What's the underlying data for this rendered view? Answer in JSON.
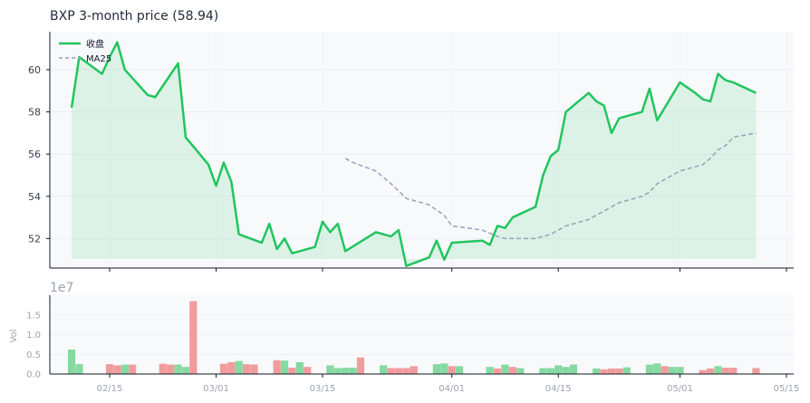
{
  "chart_data": [
    {
      "type": "line",
      "title": "BXP  3-month price (58.94)",
      "ylim": [
        50.6,
        61.8
      ],
      "yticks": [
        "52",
        "54",
        "56",
        "58",
        "60"
      ],
      "grid": true,
      "legend_placement": "top-left",
      "legend": [
        "收盘",
        "MA25"
      ],
      "series": [
        {
          "name": "收盘",
          "color": "#22c55e",
          "fill": true,
          "values": [
            [
              "2025-02-10",
              58.2
            ],
            [
              "2025-02-11",
              60.6
            ],
            [
              "2025-02-14",
              59.8
            ],
            [
              "2025-02-15",
              60.6
            ],
            [
              "2025-02-16",
              61.3
            ],
            [
              "2025-02-17",
              60.0
            ],
            [
              "2025-02-20",
              58.8
            ],
            [
              "2025-02-21",
              58.7
            ],
            [
              "2025-02-24",
              60.3
            ],
            [
              "2025-02-25",
              56.8
            ],
            [
              "2025-02-28",
              55.5
            ],
            [
              "2025-03-01",
              54.5
            ],
            [
              "2025-03-02",
              55.6
            ],
            [
              "2025-03-03",
              54.7
            ],
            [
              "2025-03-04",
              52.2
            ],
            [
              "2025-03-07",
              51.8
            ],
            [
              "2025-03-08",
              52.7
            ],
            [
              "2025-03-09",
              51.5
            ],
            [
              "2025-03-10",
              52.0
            ],
            [
              "2025-03-11",
              51.3
            ],
            [
              "2025-03-14",
              51.6
            ],
            [
              "2025-03-15",
              52.8
            ],
            [
              "2025-03-16",
              52.3
            ],
            [
              "2025-03-17",
              52.7
            ],
            [
              "2025-03-18",
              51.4
            ],
            [
              "2025-03-22",
              52.3
            ],
            [
              "2025-03-23",
              52.2
            ],
            [
              "2025-03-24",
              52.1
            ],
            [
              "2025-03-25",
              52.4
            ],
            [
              "2025-03-26",
              50.7
            ],
            [
              "2025-03-29",
              51.1
            ],
            [
              "2025-03-30",
              51.9
            ],
            [
              "2025-03-31",
              51.0
            ],
            [
              "2025-04-01",
              51.8
            ],
            [
              "2025-04-05",
              51.9
            ],
            [
              "2025-04-06",
              51.7
            ],
            [
              "2025-04-07",
              52.6
            ],
            [
              "2025-04-08",
              52.5
            ],
            [
              "2025-04-09",
              53.0
            ],
            [
              "2025-04-12",
              53.5
            ],
            [
              "2025-04-13",
              55.0
            ],
            [
              "2025-04-14",
              55.9
            ],
            [
              "2025-04-15",
              56.2
            ],
            [
              "2025-04-16",
              58.0
            ],
            [
              "2025-04-19",
              58.9
            ],
            [
              "2025-04-20",
              58.5
            ],
            [
              "2025-04-21",
              58.3
            ],
            [
              "2025-04-22",
              57.0
            ],
            [
              "2025-04-23",
              57.7
            ],
            [
              "2025-04-26",
              58.0
            ],
            [
              "2025-04-27",
              59.1
            ],
            [
              "2025-04-28",
              57.6
            ],
            [
              "2025-05-01",
              59.4
            ],
            [
              "2025-05-03",
              58.9
            ],
            [
              "2025-05-04",
              58.6
            ],
            [
              "2025-05-05",
              58.5
            ],
            [
              "2025-05-06",
              59.8
            ],
            [
              "2025-05-07",
              59.5
            ],
            [
              "2025-05-08",
              59.4
            ],
            [
              "2025-05-11",
              58.9
            ]
          ]
        },
        {
          "name": "MA25",
          "color": "#94a3b8",
          "dashed": true,
          "values": [
            [
              "2025-03-18",
              55.8
            ],
            [
              "2025-03-19",
              55.6
            ],
            [
              "2025-03-22",
              55.2
            ],
            [
              "2025-03-24",
              54.6
            ],
            [
              "2025-03-26",
              53.9
            ],
            [
              "2025-03-29",
              53.6
            ],
            [
              "2025-03-31",
              53.1
            ],
            [
              "2025-04-01",
              52.6
            ],
            [
              "2025-04-05",
              52.4
            ],
            [
              "2025-04-07",
              52.1
            ],
            [
              "2025-04-08",
              52.0
            ],
            [
              "2025-04-12",
              52.0
            ],
            [
              "2025-04-14",
              52.2
            ],
            [
              "2025-04-15",
              52.4
            ],
            [
              "2025-04-16",
              52.6
            ],
            [
              "2025-04-19",
              52.9
            ],
            [
              "2025-04-20",
              53.1
            ],
            [
              "2025-04-22",
              53.5
            ],
            [
              "2025-04-23",
              53.7
            ],
            [
              "2025-04-26",
              54.0
            ],
            [
              "2025-04-27",
              54.2
            ],
            [
              "2025-04-28",
              54.6
            ],
            [
              "2025-05-01",
              55.2
            ],
            [
              "2025-05-03",
              55.4
            ],
            [
              "2025-05-04",
              55.5
            ],
            [
              "2025-05-05",
              55.8
            ],
            [
              "2025-05-06",
              56.2
            ],
            [
              "2025-05-07",
              56.4
            ],
            [
              "2025-05-08",
              56.8
            ],
            [
              "2025-05-11",
              57.0
            ]
          ]
        }
      ]
    },
    {
      "type": "bar",
      "ylabel": "Vol",
      "offset_label": "1e7",
      "ylim": [
        0,
        2.0
      ],
      "yticks": [
        "0.0",
        "0.5",
        "1.0",
        "1.5"
      ],
      "xticks": [
        "02/15",
        "03/01",
        "03/15",
        "04/01",
        "04/15",
        "05/01",
        "05/15"
      ],
      "up_color": "#86d9a1",
      "down_color": "#f19c9c",
      "bars": [
        [
          "2025-02-10",
          0.62,
          "up"
        ],
        [
          "2025-02-11",
          0.25,
          "up"
        ],
        [
          "2025-02-15",
          0.25,
          "down"
        ],
        [
          "2025-02-16",
          0.22,
          "down"
        ],
        [
          "2025-02-17",
          0.24,
          "up"
        ],
        [
          "2025-02-18",
          0.24,
          "down"
        ],
        [
          "2025-02-22",
          0.26,
          "down"
        ],
        [
          "2025-02-23",
          0.24,
          "down"
        ],
        [
          "2025-02-24",
          0.24,
          "up"
        ],
        [
          "2025-02-25",
          0.18,
          "up"
        ],
        [
          "2025-02-26",
          1.85,
          "down"
        ],
        [
          "2025-03-02",
          0.26,
          "down"
        ],
        [
          "2025-03-03",
          0.3,
          "down"
        ],
        [
          "2025-03-04",
          0.33,
          "up"
        ],
        [
          "2025-03-05",
          0.25,
          "down"
        ],
        [
          "2025-03-06",
          0.24,
          "down"
        ],
        [
          "2025-03-09",
          0.35,
          "down"
        ],
        [
          "2025-03-10",
          0.34,
          "up"
        ],
        [
          "2025-03-11",
          0.16,
          "down"
        ],
        [
          "2025-03-12",
          0.3,
          "up"
        ],
        [
          "2025-03-13",
          0.18,
          "down"
        ],
        [
          "2025-03-16",
          0.22,
          "up"
        ],
        [
          "2025-03-17",
          0.15,
          "up"
        ],
        [
          "2025-03-18",
          0.16,
          "up"
        ],
        [
          "2025-03-19",
          0.16,
          "up"
        ],
        [
          "2025-03-20",
          0.42,
          "down"
        ],
        [
          "2025-03-23",
          0.22,
          "up"
        ],
        [
          "2025-03-24",
          0.15,
          "down"
        ],
        [
          "2025-03-25",
          0.15,
          "down"
        ],
        [
          "2025-03-26",
          0.15,
          "down"
        ],
        [
          "2025-03-27",
          0.2,
          "down"
        ],
        [
          "2025-03-30",
          0.25,
          "up"
        ],
        [
          "2025-03-31",
          0.27,
          "up"
        ],
        [
          "2025-04-01",
          0.2,
          "down"
        ],
        [
          "2025-04-02",
          0.2,
          "up"
        ],
        [
          "2025-04-06",
          0.18,
          "up"
        ],
        [
          "2025-04-07",
          0.14,
          "down"
        ],
        [
          "2025-04-08",
          0.24,
          "up"
        ],
        [
          "2025-04-09",
          0.18,
          "down"
        ],
        [
          "2025-04-10",
          0.15,
          "up"
        ],
        [
          "2025-04-13",
          0.15,
          "up"
        ],
        [
          "2025-04-14",
          0.15,
          "up"
        ],
        [
          "2025-04-15",
          0.22,
          "up"
        ],
        [
          "2025-04-16",
          0.18,
          "up"
        ],
        [
          "2025-04-17",
          0.24,
          "up"
        ],
        [
          "2025-04-20",
          0.14,
          "up"
        ],
        [
          "2025-04-21",
          0.12,
          "down"
        ],
        [
          "2025-04-22",
          0.14,
          "down"
        ],
        [
          "2025-04-23",
          0.14,
          "down"
        ],
        [
          "2025-04-24",
          0.17,
          "up"
        ],
        [
          "2025-04-27",
          0.24,
          "up"
        ],
        [
          "2025-04-28",
          0.27,
          "up"
        ],
        [
          "2025-04-29",
          0.2,
          "down"
        ],
        [
          "2025-04-30",
          0.18,
          "up"
        ],
        [
          "2025-05-01",
          0.18,
          "up"
        ],
        [
          "2025-05-04",
          0.1,
          "down"
        ],
        [
          "2025-05-05",
          0.14,
          "down"
        ],
        [
          "2025-05-06",
          0.2,
          "up"
        ],
        [
          "2025-05-07",
          0.16,
          "down"
        ],
        [
          "2025-05-08",
          0.16,
          "down"
        ],
        [
          "2025-05-11",
          0.15,
          "down"
        ]
      ]
    }
  ]
}
